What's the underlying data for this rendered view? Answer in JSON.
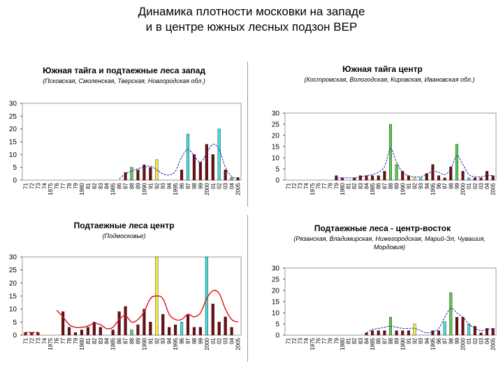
{
  "title_line1": "Динамика плотности московки на западе",
  "title_line2": "и в центре южных лесных подзон ВЕР",
  "chart_data": [
    {
      "type": "bar",
      "title": "Южная тайга и подтаежные леса запад",
      "subtitle": "(Псковская, Смоленская, Тверская, Новгородская обл.)",
      "categories": [
        "71",
        "72",
        "73",
        "74",
        "1975",
        "76",
        "77",
        "78",
        "79",
        "1980",
        "81",
        "82",
        "83",
        "84",
        "1985",
        "86",
        "87",
        "88",
        "89",
        "1990",
        "91",
        "92",
        "93",
        "94",
        "1995",
        "96",
        "97",
        "98",
        "99",
        "2000",
        "01",
        "02",
        "03",
        "04",
        "2005"
      ],
      "values": [
        0,
        0,
        0,
        0,
        0,
        0,
        0,
        0,
        0,
        0,
        0,
        0,
        0,
        0,
        0,
        0,
        3,
        5,
        4,
        6,
        5,
        8,
        0,
        0,
        0,
        4,
        18,
        10,
        7,
        14,
        10,
        20,
        4,
        1,
        1
      ],
      "highlights": {
        "17": "#55cc55",
        "21": "#eeee44",
        "26": "#44dddd",
        "31": "#44dddd",
        "33": "#55cc55"
      },
      "trend": [
        null,
        null,
        null,
        null,
        null,
        null,
        null,
        null,
        null,
        null,
        null,
        null,
        null,
        null,
        null,
        0.5,
        2.5,
        3.5,
        4.5,
        5,
        5.5,
        4,
        2.5,
        2,
        3.5,
        9,
        12,
        9.5,
        7,
        10.5,
        14,
        12,
        5,
        1.5,
        0.5
      ],
      "trend_color": "#1f2fa8",
      "yticks": [
        0,
        5,
        10,
        15,
        20,
        25,
        30
      ],
      "ylim": [
        0,
        30
      ]
    },
    {
      "type": "bar",
      "title": "Южная тайга центр",
      "subtitle": "(Костромская, Вологодская, Кировская, Ивановская обл.)",
      "categories": [
        "71",
        "72",
        "73",
        "74",
        "1975",
        "76",
        "77",
        "78",
        "79",
        "1980",
        "81",
        "82",
        "83",
        "84",
        "1985",
        "86",
        "87",
        "88",
        "89",
        "1990",
        "91",
        "92",
        "93",
        "94",
        "1995",
        "96",
        "97",
        "98",
        "99",
        "2000",
        "01",
        "02",
        "03",
        "04",
        "2005"
      ],
      "values": [
        0,
        0,
        0,
        0,
        0,
        0,
        0,
        0,
        2,
        1,
        0,
        1,
        2,
        2,
        2,
        2,
        4,
        25,
        7,
        4,
        2,
        1,
        1,
        3,
        7,
        2,
        1,
        6,
        16,
        4,
        1,
        1,
        1,
        4,
        2
      ],
      "highlights": {
        "17": "#55cc55",
        "18": "#55cc55",
        "21": "#eeee44",
        "22": "#44dddd",
        "28": "#55cc55",
        "30": "#44dddd"
      },
      "trend": [
        null,
        null,
        null,
        null,
        null,
        null,
        null,
        null,
        1,
        1,
        1,
        1,
        1.5,
        2,
        2.5,
        3.5,
        6,
        14,
        8,
        3.5,
        2,
        1.5,
        1.5,
        2.5,
        4,
        3.5,
        2.5,
        5,
        11,
        7,
        2.5,
        1.5,
        1.5,
        2,
        2
      ],
      "trend_color": "#1f2fa8",
      "yticks": [
        0,
        5,
        10,
        15,
        20,
        25,
        30
      ],
      "ylim": [
        0,
        30
      ]
    },
    {
      "type": "bar",
      "title": "Подтаежные леса центр",
      "subtitle": "(Подмосковье)",
      "categories": [
        "71",
        "72",
        "73",
        "74",
        "1975",
        "76",
        "77",
        "78",
        "79",
        "1980",
        "81",
        "82",
        "83",
        "84",
        "1985",
        "86",
        "87",
        "88",
        "89",
        "1990",
        "91",
        "92",
        "93",
        "94",
        "1995",
        "96",
        "97",
        "98",
        "99",
        "2000",
        "01",
        "02",
        "03",
        "04",
        "2005"
      ],
      "values": [
        1,
        1,
        1,
        0,
        0,
        0,
        9,
        3,
        1,
        2,
        3,
        5,
        3,
        0,
        2,
        9,
        11,
        2,
        4,
        10,
        5,
        30,
        8,
        3,
        4,
        5,
        8,
        3,
        3,
        30,
        12,
        5,
        7,
        3,
        0
      ],
      "highlights": {
        "17": "#55cc55",
        "21": "#eeee44",
        "25": "#44dddd",
        "29": "#44dddd"
      },
      "trend": [
        null,
        null,
        null,
        null,
        null,
        9.5,
        7,
        4,
        3,
        3,
        3.5,
        4.5,
        4,
        2.5,
        3,
        6,
        7.5,
        5,
        6,
        9,
        14,
        15,
        14,
        8,
        6,
        6,
        8,
        7,
        8.5,
        14,
        17,
        16,
        10,
        6,
        5
      ],
      "trend_color": "#dd1111",
      "trend_early": [
        1,
        1,
        1
      ],
      "yticks": [
        0,
        5,
        10,
        15,
        20,
        25,
        30
      ],
      "ylim": [
        0,
        30
      ]
    },
    {
      "type": "bar",
      "title": "Подтаежные леса - центр-восток",
      "subtitle": "(Рязанская, Владимирская, Нижегородская, Марий-Эл, Чувашия, Мордовия)",
      "categories": [
        "71",
        "72",
        "73",
        "74",
        "1975",
        "76",
        "77",
        "78",
        "79",
        "1980",
        "81",
        "82",
        "83",
        "84",
        "1985",
        "86",
        "87",
        "88",
        "89",
        "1990",
        "91",
        "92",
        "93",
        "94",
        "1995",
        "96",
        "97",
        "98",
        "99",
        "2000",
        "01",
        "02",
        "03",
        "04",
        "2005"
      ],
      "values": [
        0,
        0,
        0,
        0,
        0,
        0,
        0,
        0,
        0,
        0,
        0,
        0,
        0,
        1,
        2,
        2,
        2,
        8,
        2,
        2,
        2,
        5,
        0,
        0,
        2,
        2,
        6,
        19,
        8,
        8,
        5,
        4,
        1,
        3,
        3
      ],
      "highlights": {
        "17": "#55cc55",
        "21": "#eeee44",
        "26": "#44dddd",
        "27": "#55cc55",
        "30": "#44dddd"
      },
      "trend": [
        null,
        null,
        null,
        null,
        null,
        null,
        null,
        null,
        null,
        null,
        null,
        null,
        null,
        1,
        2.5,
        3,
        3.5,
        4,
        3.5,
        3,
        3,
        3,
        2,
        1,
        1.5,
        3,
        8,
        12,
        10,
        8,
        5,
        3,
        2,
        2.5,
        3
      ],
      "trend_color": "#1f2fa8",
      "yticks": [
        0,
        5,
        10,
        15,
        20,
        25,
        30
      ],
      "ylim": [
        0,
        30
      ]
    }
  ]
}
